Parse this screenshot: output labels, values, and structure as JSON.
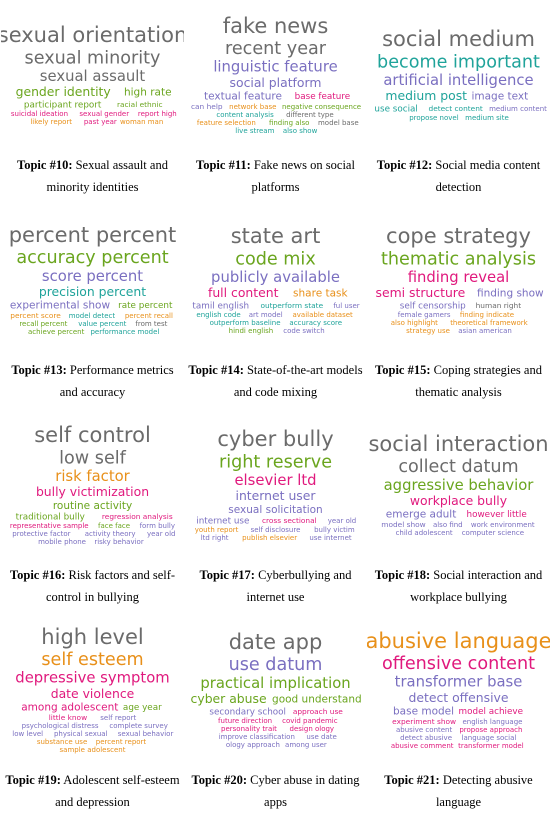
{
  "topics": [
    {
      "label": "Topic #10:",
      "title": "Sexual assault and minority identities",
      "words": [
        {
          "text": "sexual orientation",
          "color": "#6b6b6b"
        },
        {
          "text": "sexual minority",
          "color": "#6b6b6b"
        },
        {
          "text": "sexual assault",
          "color": "#6b6b6b"
        },
        {
          "text": "gender identity",
          "color": "#6aa51e"
        },
        {
          "text": "high rate",
          "color": "#6aa51e"
        },
        {
          "text": "participant report",
          "color": "#6aa51e"
        },
        {
          "text": "racial ethnic",
          "color": "#6aa51e"
        },
        {
          "text": "suicidal ideation",
          "color": "#e0197d"
        },
        {
          "text": "sexual gender",
          "color": "#e0197d"
        },
        {
          "text": "report high",
          "color": "#e0197d"
        },
        {
          "text": "likely report",
          "color": "#e8901a"
        },
        {
          "text": "past year",
          "color": "#e0197d"
        },
        {
          "text": "woman man",
          "color": "#e8901a"
        }
      ]
    },
    {
      "label": "Topic #11:",
      "title": "Fake news on social platforms",
      "words": [
        {
          "text": "fake news",
          "color": "#6b6b6b"
        },
        {
          "text": "recent year",
          "color": "#6b6b6b"
        },
        {
          "text": "linguistic feature",
          "color": "#7a6fc0"
        },
        {
          "text": "social platform",
          "color": "#7a6fc0"
        },
        {
          "text": "textual feature",
          "color": "#7a6fc0"
        },
        {
          "text": "base feature",
          "color": "#e0197d"
        },
        {
          "text": "can help",
          "color": "#7a6fc0"
        },
        {
          "text": "network base",
          "color": "#e8901a"
        },
        {
          "text": "negative consequence",
          "color": "#6aa51e"
        },
        {
          "text": "content analysis",
          "color": "#1fa39a"
        },
        {
          "text": "different type",
          "color": "#6b6b6b"
        },
        {
          "text": "feature selection",
          "color": "#e8901a"
        },
        {
          "text": "finding also",
          "color": "#6aa51e"
        },
        {
          "text": "model base",
          "color": "#6b6b6b"
        },
        {
          "text": "live stream",
          "color": "#1fa39a"
        },
        {
          "text": "also show",
          "color": "#1fa39a"
        }
      ]
    },
    {
      "label": "Topic #12:",
      "title": "Social media content detection",
      "words": [
        {
          "text": "social medium",
          "color": "#6b6b6b"
        },
        {
          "text": "become important",
          "color": "#1fa39a"
        },
        {
          "text": "artificial intelligence",
          "color": "#7a6fc0"
        },
        {
          "text": "medium post",
          "color": "#1fa39a"
        },
        {
          "text": "image text",
          "color": "#7a6fc0"
        },
        {
          "text": "use social",
          "color": "#1fa39a"
        },
        {
          "text": "detect content",
          "color": "#1fa39a"
        },
        {
          "text": "medium content",
          "color": "#7a6fc0"
        },
        {
          "text": "propose novel",
          "color": "#1fa39a"
        },
        {
          "text": "medium site",
          "color": "#1fa39a"
        }
      ]
    },
    {
      "label": "Topic #13:",
      "title": "Performance metrics and accuracy",
      "words": [
        {
          "text": "percent percent",
          "color": "#6b6b6b"
        },
        {
          "text": "accuracy percent",
          "color": "#6aa51e"
        },
        {
          "text": "score percent",
          "color": "#7a6fc0"
        },
        {
          "text": "precision percent",
          "color": "#1fa39a"
        },
        {
          "text": "experimental show",
          "color": "#7a6fc0"
        },
        {
          "text": "rate percent",
          "color": "#6aa51e"
        },
        {
          "text": "percent score",
          "color": "#e8901a"
        },
        {
          "text": "model detect",
          "color": "#1fa39a"
        },
        {
          "text": "percent recall",
          "color": "#e8901a"
        },
        {
          "text": "recall percent",
          "color": "#6aa51e"
        },
        {
          "text": "value percent",
          "color": "#1fa39a"
        },
        {
          "text": "from test",
          "color": "#6b6b6b"
        },
        {
          "text": "achieve percent",
          "color": "#6aa51e"
        },
        {
          "text": "performance model",
          "color": "#1fa39a"
        }
      ]
    },
    {
      "label": "Topic #14:",
      "title": "State-of-the-art models and code mixing",
      "words": [
        {
          "text": "state art",
          "color": "#6b6b6b"
        },
        {
          "text": "code mix",
          "color": "#6aa51e"
        },
        {
          "text": "publicly available",
          "color": "#7a6fc0"
        },
        {
          "text": "full content",
          "color": "#e0197d"
        },
        {
          "text": "share task",
          "color": "#e8901a"
        },
        {
          "text": "tamil english",
          "color": "#7a6fc0"
        },
        {
          "text": "outperform state",
          "color": "#1fa39a"
        },
        {
          "text": "ful user",
          "color": "#7a6fc0"
        },
        {
          "text": "english code",
          "color": "#1fa39a"
        },
        {
          "text": "art model",
          "color": "#7a6fc0"
        },
        {
          "text": "available dataset",
          "color": "#e8901a"
        },
        {
          "text": "outperform baseline",
          "color": "#1fa39a"
        },
        {
          "text": "accuracy score",
          "color": "#1fa39a"
        },
        {
          "text": "hindi english",
          "color": "#6aa51e"
        },
        {
          "text": "code switch",
          "color": "#7a6fc0"
        }
      ]
    },
    {
      "label": "Topic #15:",
      "title": "Coping strategies and thematic analysis",
      "words": [
        {
          "text": "cope strategy",
          "color": "#6b6b6b"
        },
        {
          "text": "thematic analysis",
          "color": "#6aa51e"
        },
        {
          "text": "finding reveal",
          "color": "#e0197d"
        },
        {
          "text": "semi structure",
          "color": "#e0197d"
        },
        {
          "text": "finding show",
          "color": "#7a6fc0"
        },
        {
          "text": "self censorship",
          "color": "#7a6fc0"
        },
        {
          "text": "human right",
          "color": "#6b6b6b"
        },
        {
          "text": "female gamers",
          "color": "#7a6fc0"
        },
        {
          "text": "finding indicate",
          "color": "#e8901a"
        },
        {
          "text": "also highlight",
          "color": "#e8901a"
        },
        {
          "text": "theoretical framework",
          "color": "#e8901a"
        },
        {
          "text": "strategy use",
          "color": "#e8901a"
        },
        {
          "text": "asian american",
          "color": "#7a6fc0"
        }
      ]
    },
    {
      "label": "Topic #16:",
      "title": "Risk factors and self-control in bullying",
      "words": [
        {
          "text": "self control",
          "color": "#6b6b6b"
        },
        {
          "text": "low self",
          "color": "#6b6b6b"
        },
        {
          "text": "risk factor",
          "color": "#e8901a"
        },
        {
          "text": "bully victimization",
          "color": "#e0197d"
        },
        {
          "text": "routine activity",
          "color": "#6aa51e"
        },
        {
          "text": "traditional bully",
          "color": "#6aa51e"
        },
        {
          "text": "regression analysis",
          "color": "#e0197d"
        },
        {
          "text": "representative sample",
          "color": "#e0197d"
        },
        {
          "text": "face face",
          "color": "#6aa51e"
        },
        {
          "text": "form bully",
          "color": "#7a6fc0"
        },
        {
          "text": "protective factor",
          "color": "#7a6fc0"
        },
        {
          "text": "activity theory",
          "color": "#7a6fc0"
        },
        {
          "text": "year old",
          "color": "#7a6fc0"
        },
        {
          "text": "mobile phone",
          "color": "#7a6fc0"
        },
        {
          "text": "risky behavior",
          "color": "#7a6fc0"
        }
      ]
    },
    {
      "label": "Topic #17:",
      "title": "Cyberbullying and internet use",
      "words": [
        {
          "text": "cyber bully",
          "color": "#6b6b6b"
        },
        {
          "text": "right reserve",
          "color": "#6aa51e"
        },
        {
          "text": "elsevier ltd",
          "color": "#e0197d"
        },
        {
          "text": "internet user",
          "color": "#7a6fc0"
        },
        {
          "text": "sexual solicitation",
          "color": "#7a6fc0"
        },
        {
          "text": "internet use",
          "color": "#7a6fc0"
        },
        {
          "text": "cross sectional",
          "color": "#e0197d"
        },
        {
          "text": "year old",
          "color": "#7a6fc0"
        },
        {
          "text": "youth report",
          "color": "#e8901a"
        },
        {
          "text": "self disclosure",
          "color": "#7a6fc0"
        },
        {
          "text": "bully victim",
          "color": "#7a6fc0"
        },
        {
          "text": "ltd right",
          "color": "#7a6fc0"
        },
        {
          "text": "publish elsevier",
          "color": "#e8901a"
        },
        {
          "text": "use internet",
          "color": "#7a6fc0"
        }
      ]
    },
    {
      "label": "Topic #18:",
      "title": "Social interaction and workplace bullying",
      "words": [
        {
          "text": "social interaction",
          "color": "#6b6b6b"
        },
        {
          "text": "collect datum",
          "color": "#6b6b6b"
        },
        {
          "text": "aggressive behavior",
          "color": "#6aa51e"
        },
        {
          "text": "workplace bully",
          "color": "#e0197d"
        },
        {
          "text": "emerge adult",
          "color": "#7a6fc0"
        },
        {
          "text": "however little",
          "color": "#e0197d"
        },
        {
          "text": "model show",
          "color": "#7a6fc0"
        },
        {
          "text": "also find",
          "color": "#7a6fc0"
        },
        {
          "text": "work environment",
          "color": "#7a6fc0"
        },
        {
          "text": "child adolescent",
          "color": "#7a6fc0"
        },
        {
          "text": "computer science",
          "color": "#7a6fc0"
        }
      ]
    },
    {
      "label": "Topic #19:",
      "title": "Adolescent self-esteem and depression",
      "words": [
        {
          "text": "high level",
          "color": "#6b6b6b"
        },
        {
          "text": "self esteem",
          "color": "#e8901a"
        },
        {
          "text": "depressive symptom",
          "color": "#e0197d"
        },
        {
          "text": "date violence",
          "color": "#e0197d"
        },
        {
          "text": "among adolescent",
          "color": "#e0197d"
        },
        {
          "text": "age year",
          "color": "#6aa51e"
        },
        {
          "text": "little know",
          "color": "#e0197d"
        },
        {
          "text": "self report",
          "color": "#7a6fc0"
        },
        {
          "text": "psychological distress",
          "color": "#7a6fc0"
        },
        {
          "text": "complete survey",
          "color": "#7a6fc0"
        },
        {
          "text": "low level",
          "color": "#7a6fc0"
        },
        {
          "text": "physical sexual",
          "color": "#7a6fc0"
        },
        {
          "text": "sexual behavior",
          "color": "#7a6fc0"
        },
        {
          "text": "substance use",
          "color": "#e8901a"
        },
        {
          "text": "percent report",
          "color": "#e8901a"
        },
        {
          "text": "sample adolescent",
          "color": "#e8901a"
        }
      ]
    },
    {
      "label": "Topic #20:",
      "title": "Cyber abuse in dating apps",
      "words": [
        {
          "text": "date app",
          "color": "#6b6b6b"
        },
        {
          "text": "use datum",
          "color": "#7a6fc0"
        },
        {
          "text": "practical implication",
          "color": "#6aa51e"
        },
        {
          "text": "cyber abuse",
          "color": "#6aa51e"
        },
        {
          "text": "good understand",
          "color": "#6aa51e"
        },
        {
          "text": "secondary school",
          "color": "#7a6fc0"
        },
        {
          "text": "approach use",
          "color": "#e0197d"
        },
        {
          "text": "future direction",
          "color": "#e0197d"
        },
        {
          "text": "covid pandemic",
          "color": "#e0197d"
        },
        {
          "text": "personality trait",
          "color": "#e0197d"
        },
        {
          "text": "design ology",
          "color": "#e0197d"
        },
        {
          "text": "improve classification",
          "color": "#7a6fc0"
        },
        {
          "text": "use date",
          "color": "#7a6fc0"
        },
        {
          "text": "ology approach",
          "color": "#7a6fc0"
        },
        {
          "text": "among user",
          "color": "#7a6fc0"
        }
      ]
    },
    {
      "label": "Topic #21:",
      "title": "Detecting abusive language",
      "words": [
        {
          "text": "abusive language",
          "color": "#e8901a"
        },
        {
          "text": "offensive content",
          "color": "#e0197d"
        },
        {
          "text": "transformer base",
          "color": "#7a6fc0"
        },
        {
          "text": "detect offensive",
          "color": "#7a6fc0"
        },
        {
          "text": "base model",
          "color": "#7a6fc0"
        },
        {
          "text": "model achieve",
          "color": "#e0197d"
        },
        {
          "text": "experiment show",
          "color": "#e0197d"
        },
        {
          "text": "english language",
          "color": "#7a6fc0"
        },
        {
          "text": "abusive content",
          "color": "#7a6fc0"
        },
        {
          "text": "propose approach",
          "color": "#e0197d"
        },
        {
          "text": "detect abusive",
          "color": "#7a6fc0"
        },
        {
          "text": "language social",
          "color": "#7a6fc0"
        },
        {
          "text": "abusive comment",
          "color": "#e0197d"
        },
        {
          "text": "transformer model",
          "color": "#e0197d"
        }
      ]
    }
  ]
}
